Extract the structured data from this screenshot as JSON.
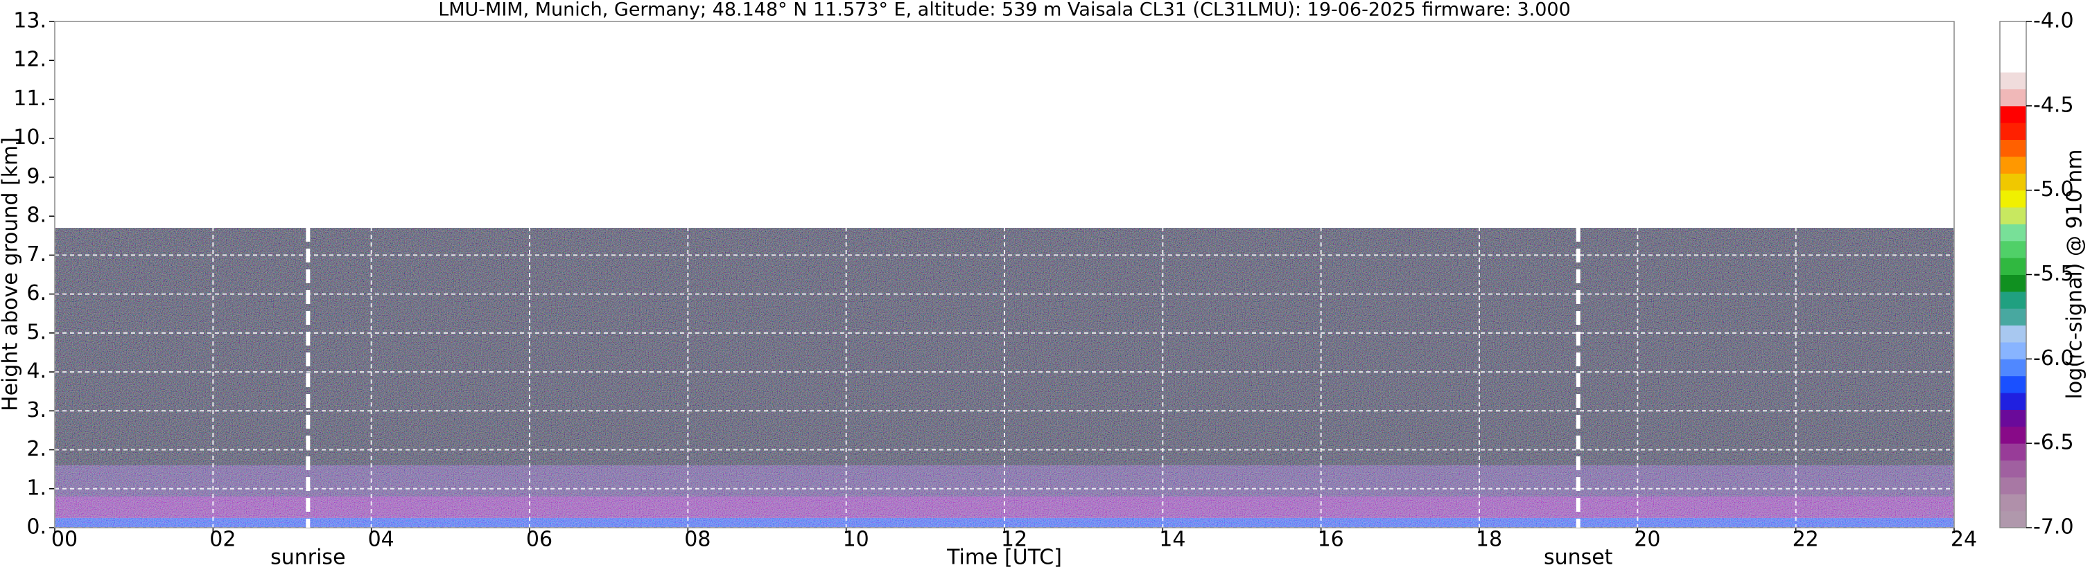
{
  "chart_data": {
    "type": "heatmap",
    "title": "LMU-MIM, Munich, Germany; 48.148° N 11.573° E, altitude: 539 m    Vaisala CL31 (CL31LMU): 19-06-2025    firmware: 3.000",
    "x_label": "Time [UTC]",
    "y_label": "Height above ground [km]",
    "xlim": [
      0,
      24
    ],
    "xticks": [
      {
        "value": 0,
        "label": "00"
      },
      {
        "value": 2,
        "label": "02"
      },
      {
        "value": 4,
        "label": "04"
      },
      {
        "value": 6,
        "label": "06"
      },
      {
        "value": 8,
        "label": "08"
      },
      {
        "value": 10,
        "label": "10"
      },
      {
        "value": 12,
        "label": "12"
      },
      {
        "value": 14,
        "label": "14"
      },
      {
        "value": 16,
        "label": "16"
      },
      {
        "value": 18,
        "label": "18"
      },
      {
        "value": 20,
        "label": "20"
      },
      {
        "value": 22,
        "label": "22"
      },
      {
        "value": 24,
        "label": "24"
      }
    ],
    "ylim": [
      0,
      13
    ],
    "yticks": [
      {
        "value": 0,
        "label": "0."
      },
      {
        "value": 1,
        "label": "1."
      },
      {
        "value": 2,
        "label": "2."
      },
      {
        "value": 3,
        "label": "3."
      },
      {
        "value": 4,
        "label": "4."
      },
      {
        "value": 5,
        "label": "5."
      },
      {
        "value": 6,
        "label": "6."
      },
      {
        "value": 7,
        "label": "7."
      },
      {
        "value": 8,
        "label": "8."
      },
      {
        "value": 9,
        "label": "9."
      },
      {
        "value": 10,
        "label": "10."
      },
      {
        "value": 11,
        "label": "11."
      },
      {
        "value": 12,
        "label": "12."
      },
      {
        "value": 13,
        "label": "13."
      }
    ],
    "grid": true,
    "layers": [
      {
        "bottom": 0,
        "top": 0.25,
        "color": "#1f48e8"
      },
      {
        "bottom": 0.25,
        "top": 0.8,
        "color": "#7a2496"
      },
      {
        "bottom": 0.8,
        "top": 1.6,
        "color": "#4a3070"
      },
      {
        "bottom": 1.6,
        "top": 7.7,
        "color": "#1c1c24"
      }
    ],
    "annotations": [
      {
        "x": 3.2,
        "label": "sunrise"
      },
      {
        "x": 19.25,
        "label": "sunset"
      }
    ],
    "colorbar": {
      "label": "log(rc-signal) @ 910 nm",
      "lim": [
        -7,
        -4
      ],
      "ticks": [
        {
          "value": -4.0,
          "label": "-4.0"
        },
        -4.5,
        {
          "value": -5.0,
          "label": "-5.0"
        },
        -5.5,
        {
          "value": -6.0,
          "label": "-6.0"
        },
        -6.5,
        {
          "value": -7.0,
          "label": "-7.0"
        }
      ],
      "colors": [
        "#b098ac",
        "#b090aa",
        "#a878a4",
        "#a060a0",
        "#983c98",
        "#880a88",
        "#6a0a9a",
        "#2020e0",
        "#1a50ff",
        "#5088ff",
        "#88b4ff",
        "#a8c8f0",
        "#48a8a0",
        "#20a080",
        "#109020",
        "#30b840",
        "#50d068",
        "#78e098",
        "#c8e860",
        "#f0f000",
        "#f0c800",
        "#ff9800",
        "#ff6000",
        "#ff2000",
        "#ff0000",
        "#f0b8b8",
        "#f0dcdc",
        "#ffffff",
        "#ffffff",
        "#ffffff"
      ]
    }
  }
}
